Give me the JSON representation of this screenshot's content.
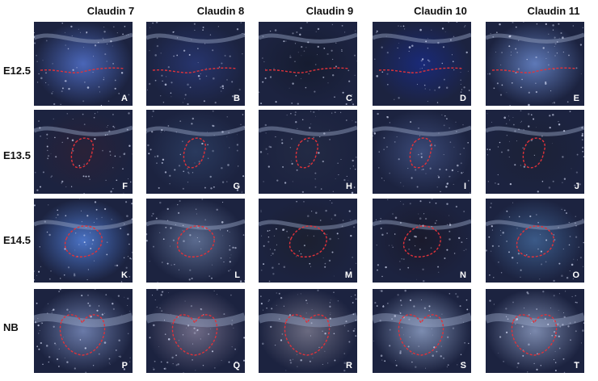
{
  "columns": [
    "Claudin 7",
    "Claudin 8",
    "Claudin 9",
    "Claudin 10",
    "Claudin 11"
  ],
  "rows": [
    "E12.5",
    "E13.5",
    "E14.5",
    "NB"
  ],
  "panel_letters": [
    [
      "A",
      "B",
      "C",
      "D",
      "E"
    ],
    [
      "F",
      "G",
      "H",
      "I",
      "J"
    ],
    [
      "K",
      "L",
      "M",
      "N",
      "O"
    ],
    [
      "P",
      "Q",
      "R",
      "S",
      "T"
    ]
  ],
  "colors": {
    "outline": "#e0323a",
    "tissue_dark": "#1c2340",
    "tissue_blue": "#2e4a9a",
    "tissue_pale": "#9aa6c6"
  }
}
